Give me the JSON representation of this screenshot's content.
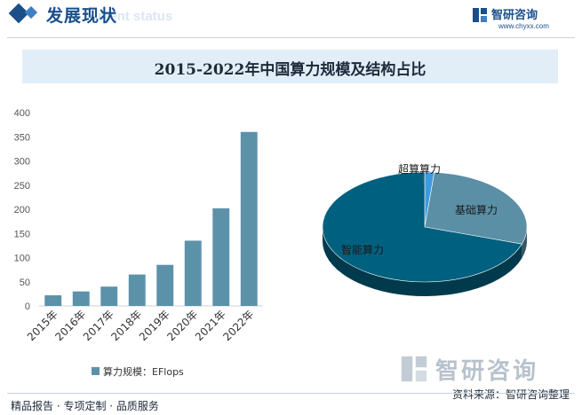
{
  "header": {
    "section_title": "发展现状",
    "section_subtitle": "ment status",
    "brand_name": "智研咨询",
    "brand_url": "www.chyxx.com"
  },
  "chart_data": [
    {
      "type": "bar",
      "title": "2015-2022年中国算力规模及结构占比",
      "categories": [
        "2015年",
        "2016年",
        "2017年",
        "2018年",
        "2019年",
        "2020年",
        "2021年",
        "2022年"
      ],
      "series": [
        {
          "name": "算力规模：EFlops",
          "values": [
            22,
            30,
            40,
            65,
            85,
            135,
            202,
            360
          ]
        }
      ],
      "ylim": [
        0,
        400
      ],
      "yticks": [
        0,
        50,
        100,
        150,
        200,
        250,
        300,
        350,
        400
      ],
      "grid": false,
      "legend": "bottom",
      "colors": {
        "bar": "#5b92aa"
      }
    },
    {
      "type": "pie",
      "slices": [
        {
          "label": "超算算力",
          "value": 1.5,
          "color": "#3d9be0"
        },
        {
          "label": "基础算力",
          "value": 28.5,
          "color": "#5b8fa6"
        },
        {
          "label": "智能算力",
          "value": 70,
          "color": "#00607f"
        }
      ]
    }
  ],
  "footer": {
    "left_text": "精品报告 · 专项定制 · 品质服务",
    "source_text": "资料来源：智研咨询整理",
    "watermark_brand": "智研咨询"
  }
}
